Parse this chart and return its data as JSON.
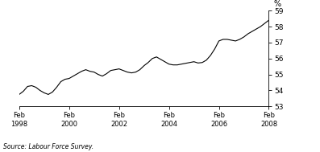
{
  "title": "",
  "ylabel": "%",
  "source": "Source: Labour Force Survey.",
  "ylim": [
    53,
    59
  ],
  "yticks": [
    53,
    54,
    55,
    56,
    57,
    58,
    59
  ],
  "xtick_labels": [
    "Feb\n1998",
    "Feb\n2000",
    "Feb\n2002",
    "Feb\n2004",
    "Feb\n2006",
    "Feb\n2008"
  ],
  "xtick_positions": [
    0,
    24,
    48,
    72,
    96,
    120
  ],
  "line_color": "#000000",
  "line_width": 0.8,
  "background_color": "#ffffff",
  "x": [
    0,
    2,
    4,
    6,
    8,
    10,
    12,
    14,
    16,
    18,
    20,
    22,
    24,
    26,
    28,
    30,
    32,
    34,
    36,
    38,
    40,
    42,
    44,
    46,
    48,
    50,
    52,
    54,
    56,
    58,
    60,
    62,
    64,
    66,
    68,
    70,
    72,
    74,
    76,
    78,
    80,
    82,
    84,
    86,
    88,
    90,
    92,
    94,
    96,
    98,
    100,
    102,
    104,
    106,
    108,
    110,
    112,
    114,
    116,
    118,
    120
  ],
  "y": [
    53.75,
    53.95,
    54.25,
    54.3,
    54.2,
    54.0,
    53.85,
    53.75,
    53.9,
    54.2,
    54.55,
    54.7,
    54.75,
    54.9,
    55.05,
    55.2,
    55.3,
    55.2,
    55.15,
    55.0,
    54.9,
    55.05,
    55.25,
    55.3,
    55.35,
    55.25,
    55.15,
    55.1,
    55.15,
    55.3,
    55.55,
    55.75,
    56.0,
    56.1,
    55.95,
    55.8,
    55.65,
    55.6,
    55.6,
    55.65,
    55.7,
    55.75,
    55.8,
    55.72,
    55.75,
    55.9,
    56.2,
    56.6,
    57.1,
    57.2,
    57.2,
    57.15,
    57.1,
    57.2,
    57.35,
    57.55,
    57.7,
    57.85,
    58.0,
    58.2,
    58.4
  ]
}
